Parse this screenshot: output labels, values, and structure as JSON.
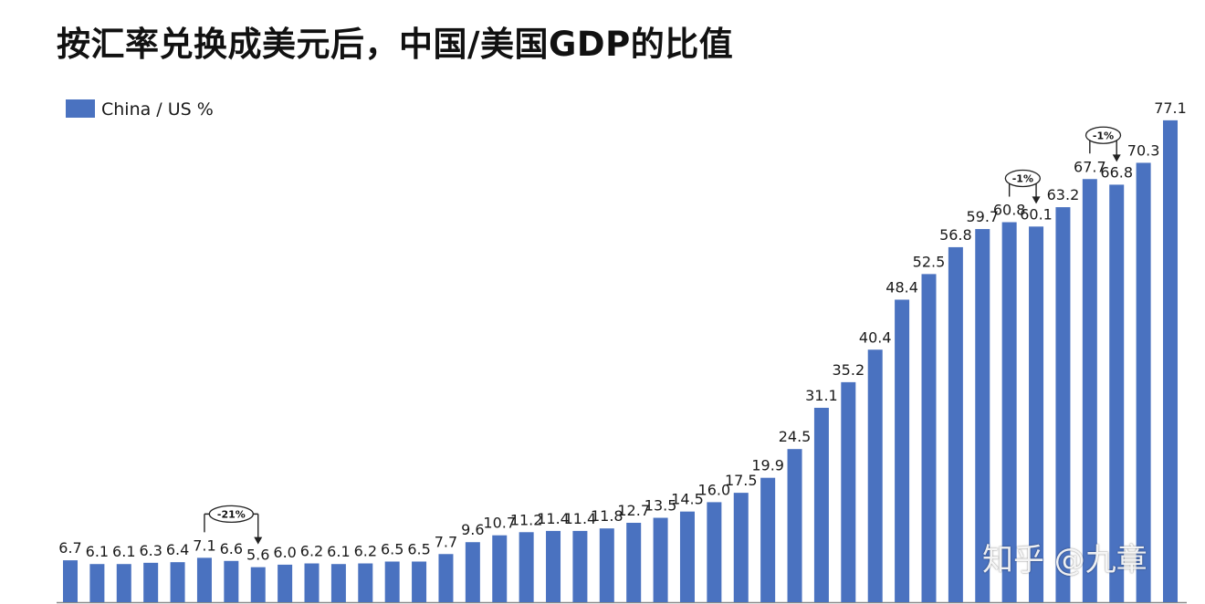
{
  "page": {
    "title": "按汇率兑换成美元后，中国/美国GDP的比值",
    "watermark": "知乎 @九章"
  },
  "colors": {
    "bar": "#4a72c0",
    "text": "#1a1a1a",
    "axis": "#8a8a8a"
  },
  "chart_data": {
    "type": "bar",
    "title": "按汇率兑换成美元后，中国/美国GDP的比值",
    "xlabel": "",
    "ylabel": "",
    "ylim": [
      0,
      80
    ],
    "grid": false,
    "legend_position": "top-left",
    "series": [
      {
        "name": "China / US %",
        "values": [
          6.7,
          6.1,
          6.1,
          6.3,
          6.4,
          7.1,
          6.6,
          5.6,
          6.0,
          6.2,
          6.1,
          6.2,
          6.5,
          6.5,
          7.7,
          9.6,
          10.7,
          11.2,
          11.4,
          11.4,
          11.8,
          12.7,
          13.5,
          14.5,
          16.0,
          17.5,
          19.9,
          24.5,
          31.1,
          35.2,
          40.4,
          48.4,
          52.5,
          56.8,
          59.7,
          60.8,
          60.1,
          63.2,
          67.7,
          66.8,
          70.3,
          77.1
        ]
      }
    ],
    "labels": [
      "6.7",
      "6.1",
      "6.1",
      "6.3",
      "6.4",
      "7.1",
      "6.6",
      "5.6",
      "6.0",
      "6.2",
      "6.1",
      "6.2",
      "6.5",
      "6.5",
      "7.7",
      "9.6",
      "10.7",
      "11.2",
      "11.4",
      "11.4",
      "11.8",
      "12.7",
      "13.5",
      "14.5",
      "16.0",
      "17.5",
      "19.9",
      "24.5",
      "31.1",
      "35.2",
      "40.4",
      "48.4",
      "52.5",
      "56.8",
      "59.7",
      "60.8",
      "60.1",
      "63.2",
      "67.7",
      "66.8",
      "70.3",
      "77.1"
    ],
    "annotations": [
      {
        "text": "-21%",
        "from_index": 5,
        "to_index": 7
      },
      {
        "text": "-1%",
        "from_index": 35,
        "to_index": 36
      },
      {
        "text": "-1%",
        "from_index": 38,
        "to_index": 39
      }
    ]
  }
}
